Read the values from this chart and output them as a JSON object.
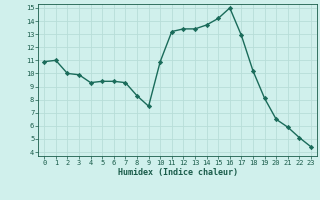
{
  "x": [
    0,
    1,
    2,
    3,
    4,
    5,
    6,
    7,
    8,
    9,
    10,
    11,
    12,
    13,
    14,
    15,
    16,
    17,
    18,
    19,
    20,
    21,
    22,
    23
  ],
  "y": [
    10.9,
    11.0,
    10.0,
    9.9,
    9.3,
    9.4,
    9.4,
    9.3,
    8.3,
    7.5,
    10.9,
    13.2,
    13.4,
    13.4,
    13.7,
    14.2,
    15.0,
    12.9,
    10.2,
    8.1,
    6.5,
    5.9,
    5.1,
    4.4
  ],
  "xlim": [
    -0.5,
    23.5
  ],
  "ylim": [
    3.7,
    15.3
  ],
  "yticks": [
    4,
    5,
    6,
    7,
    8,
    9,
    10,
    11,
    12,
    13,
    14,
    15
  ],
  "xticks": [
    0,
    1,
    2,
    3,
    4,
    5,
    6,
    7,
    8,
    9,
    10,
    11,
    12,
    13,
    14,
    15,
    16,
    17,
    18,
    19,
    20,
    21,
    22,
    23
  ],
  "xlabel": "Humidex (Indice chaleur)",
  "line_color": "#1a6b5a",
  "marker": "D",
  "marker_size": 2.2,
  "bg_color": "#d0f0ec",
  "grid_color": "#b8ddd8",
  "tick_color": "#1a5c4a",
  "label_color": "#1a5c4a"
}
